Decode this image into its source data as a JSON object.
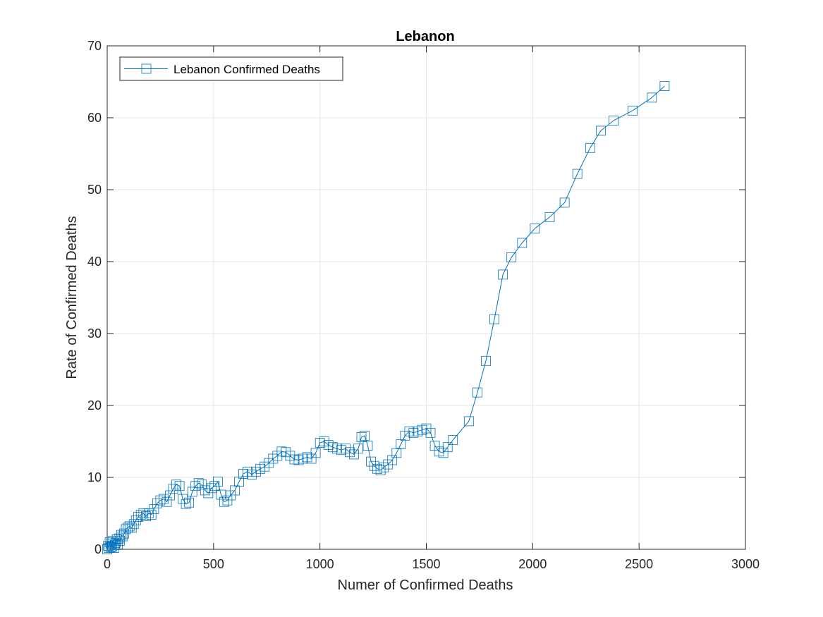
{
  "chart_data": {
    "type": "line",
    "title": "Lebanon",
    "xlabel": "Numer of Confirmed Deaths",
    "ylabel": "Rate of Confirmed Deaths",
    "xlim": [
      0,
      3000
    ],
    "ylim": [
      0,
      70
    ],
    "xticks": [
      0,
      500,
      1000,
      1500,
      2000,
      2500,
      3000
    ],
    "yticks": [
      0,
      10,
      20,
      30,
      40,
      50,
      60,
      70
    ],
    "grid": true,
    "legend_position": "top-left",
    "series": [
      {
        "name": "Lebanon Confirmed Deaths",
        "color": "#0072BD",
        "marker": "square",
        "x": [
          0,
          4,
          8,
          12,
          16,
          20,
          24,
          28,
          32,
          36,
          40,
          45,
          50,
          55,
          60,
          66,
          72,
          80,
          88,
          96,
          105,
          115,
          125,
          135,
          146,
          158,
          170,
          182,
          195,
          208,
          220,
          235,
          250,
          265,
          280,
          295,
          310,
          325,
          340,
          355,
          370,
          385,
          400,
          415,
          430,
          445,
          460,
          475,
          490,
          505,
          520,
          535,
          550,
          565,
          580,
          600,
          620,
          640,
          660,
          680,
          700,
          720,
          740,
          760,
          780,
          800,
          820,
          840,
          860,
          880,
          900,
          920,
          940,
          960,
          980,
          1000,
          1020,
          1040,
          1060,
          1080,
          1100,
          1120,
          1140,
          1160,
          1180,
          1195,
          1210,
          1225,
          1240,
          1255,
          1270,
          1285,
          1300,
          1320,
          1340,
          1360,
          1380,
          1400,
          1420,
          1440,
          1460,
          1480,
          1500,
          1520,
          1540,
          1560,
          1580,
          1600,
          1625,
          1700,
          1740,
          1780,
          1820,
          1860,
          1900,
          1950,
          2010,
          2080,
          2150,
          2210,
          2270,
          2320,
          2380,
          2470,
          2560,
          2620
        ],
        "y": [
          0,
          0.5,
          0.2,
          1.0,
          0.3,
          0.8,
          0.4,
          1.2,
          0.2,
          0.6,
          0.9,
          1.4,
          0.7,
          1.5,
          1.2,
          2.0,
          1.8,
          2.2,
          2.8,
          3.0,
          3.2,
          3.0,
          3.5,
          4.0,
          4.5,
          4.8,
          5.0,
          4.6,
          5.0,
          4.8,
          5.6,
          6.4,
          6.8,
          7.0,
          6.6,
          7.5,
          8.4,
          9.0,
          8.8,
          7.0,
          6.3,
          6.5,
          8.0,
          8.8,
          9.2,
          9.0,
          8.2,
          7.8,
          8.5,
          8.8,
          9.4,
          7.6,
          6.6,
          6.8,
          7.5,
          8.2,
          9.4,
          10.5,
          10.8,
          10.4,
          10.8,
          11.2,
          11.5,
          12.0,
          12.6,
          13.0,
          13.6,
          13.5,
          13.0,
          12.5,
          12.4,
          12.6,
          12.8,
          12.6,
          13.4,
          14.8,
          15.0,
          14.5,
          14.2,
          14.0,
          13.8,
          14.0,
          13.5,
          13.2,
          14.0,
          15.6,
          15.8,
          14.4,
          12.2,
          11.6,
          11.2,
          11.0,
          11.4,
          11.8,
          12.4,
          13.4,
          14.6,
          15.8,
          16.4,
          16.2,
          16.4,
          16.6,
          16.8,
          16.2,
          14.4,
          13.6,
          13.4,
          14.2,
          15.2,
          17.8,
          21.8,
          26.2,
          32.0,
          38.2,
          40.6,
          42.6,
          44.6,
          46.2,
          48.2,
          52.2,
          55.8,
          58.2,
          59.6,
          61.0,
          62.8,
          64.4
        ]
      }
    ]
  }
}
